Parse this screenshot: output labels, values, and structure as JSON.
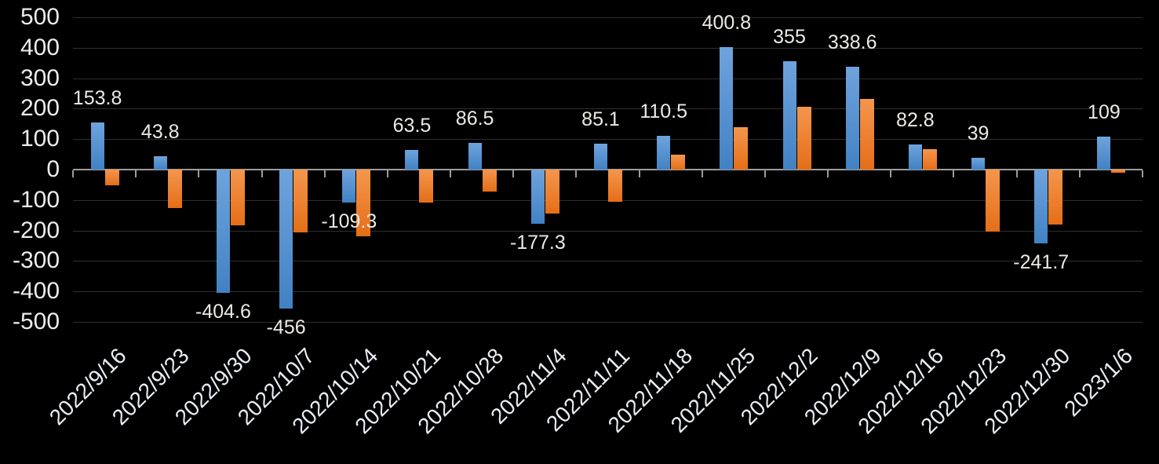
{
  "chart_data": {
    "type": "bar",
    "title": "",
    "xlabel": "",
    "ylabel": "",
    "categories": [
      "2022/9/16",
      "2022/9/23",
      "2022/9/30",
      "2022/10/7",
      "2022/10/14",
      "2022/10/21",
      "2022/10/28",
      "2022/11/4",
      "2022/11/11",
      "2022/11/18",
      "2022/11/25",
      "2022/12/2",
      "2022/12/9",
      "2022/12/16",
      "2022/12/23",
      "2022/12/30",
      "2023/1/6"
    ],
    "series": [
      {
        "name": "blue-series",
        "color": "#5b9bd5",
        "values": [
          153.8,
          43.8,
          -404.6,
          -456,
          -109.3,
          63.5,
          86.5,
          -177.3,
          85.1,
          110.5,
          400.8,
          355,
          338.6,
          82.8,
          39,
          -241.7,
          109
        ],
        "data_labels": [
          "153.8",
          "43.8",
          "-404.6",
          "-456",
          "-109.3",
          "63.5",
          "86.5",
          "-177.3",
          "85.1",
          "110.5",
          "400.8",
          "355",
          "338.6",
          "82.8",
          "39",
          "-241.7",
          "109"
        ]
      },
      {
        "name": "orange-series",
        "color": "#ed7d31",
        "values": [
          -52,
          -127,
          -183,
          -207,
          -218,
          -108,
          -72,
          -145,
          -106,
          50,
          140,
          205,
          232,
          68,
          -203,
          -181,
          -10
        ],
        "data_labels": []
      }
    ],
    "ylim": [
      -500,
      500
    ],
    "ytick_step": 100,
    "ytick_labels": [
      "500",
      "400",
      "300",
      "200",
      "100",
      "0",
      "-100",
      "-200",
      "-300",
      "-400",
      "-500"
    ],
    "grid": true,
    "legend_position": "none",
    "background": "#000000"
  },
  "style": {
    "text_color": "#ededed",
    "gridline_color": "#2f2f2f",
    "axis_color": "#9c9c9c",
    "blue_gradient_top": "#6fa3dc",
    "blue_gradient_bottom": "#4182c4",
    "orange_gradient_top": "#f4964e",
    "orange_gradient_bottom": "#e56e17"
  }
}
